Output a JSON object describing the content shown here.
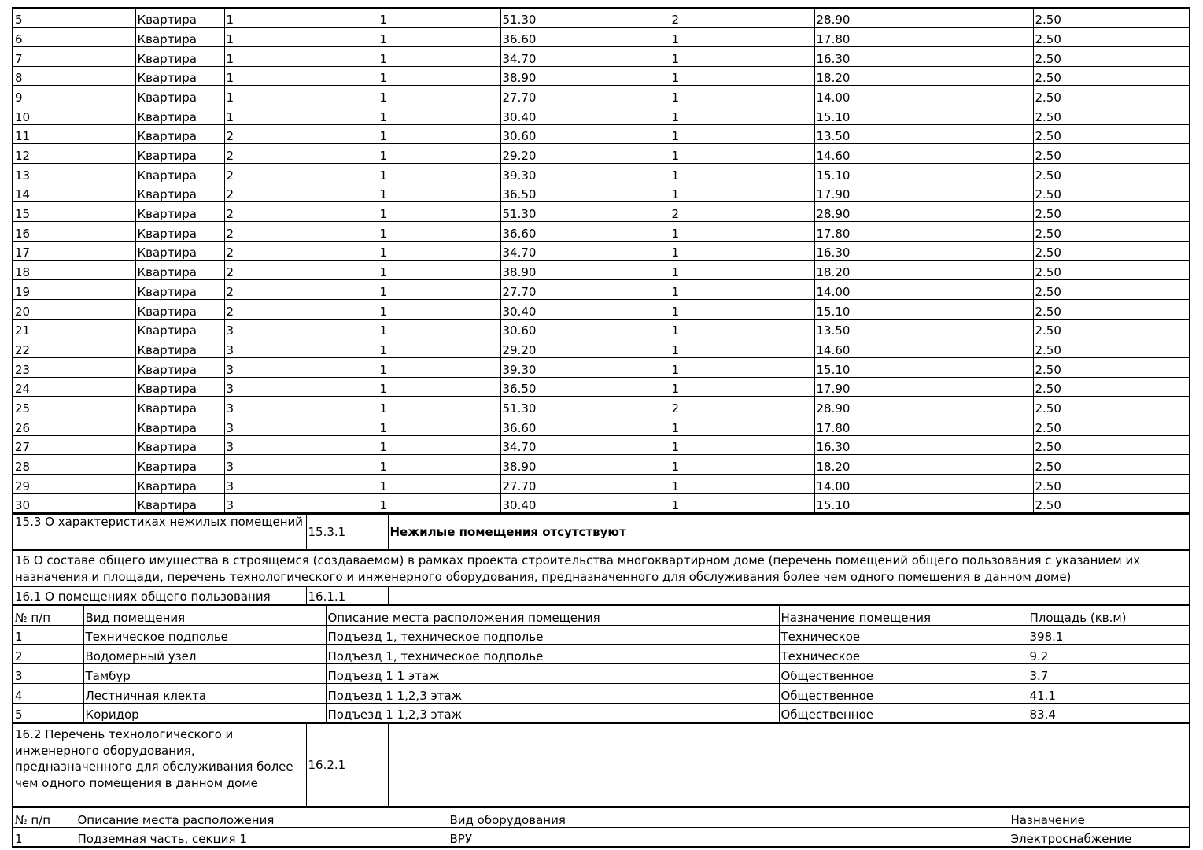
{
  "apartments": [
    [
      "5",
      "Квартира",
      "1",
      "1",
      "51.30",
      "2",
      "28.90",
      "2.50"
    ],
    [
      "6",
      "Квартира",
      "1",
      "1",
      "36.60",
      "1",
      "17.80",
      "2.50"
    ],
    [
      "7",
      "Квартира",
      "1",
      "1",
      "34.70",
      "1",
      "16.30",
      "2.50"
    ],
    [
      "8",
      "Квартира",
      "1",
      "1",
      "38.90",
      "1",
      "18.20",
      "2.50"
    ],
    [
      "9",
      "Квартира",
      "1",
      "1",
      "27.70",
      "1",
      "14.00",
      "2.50"
    ],
    [
      "10",
      "Квартира",
      "1",
      "1",
      "30.40",
      "1",
      "15.10",
      "2.50"
    ],
    [
      "11",
      "Квартира",
      "2",
      "1",
      "30.60",
      "1",
      "13.50",
      "2.50"
    ],
    [
      "12",
      "Квартира",
      "2",
      "1",
      "29.20",
      "1",
      "14.60",
      "2.50"
    ],
    [
      "13",
      "Квартира",
      "2",
      "1",
      "39.30",
      "1",
      "15.10",
      "2.50"
    ],
    [
      "14",
      "Квартира",
      "2",
      "1",
      "36.50",
      "1",
      "17.90",
      "2.50"
    ],
    [
      "15",
      "Квартира",
      "2",
      "1",
      "51.30",
      "2",
      "28.90",
      "2.50"
    ],
    [
      "16",
      "Квартира",
      "2",
      "1",
      "36.60",
      "1",
      "17.80",
      "2.50"
    ],
    [
      "17",
      "Квартира",
      "2",
      "1",
      "34.70",
      "1",
      "16.30",
      "2.50"
    ],
    [
      "18",
      "Квартира",
      "2",
      "1",
      "38.90",
      "1",
      "18.20",
      "2.50"
    ],
    [
      "19",
      "Квартира",
      "2",
      "1",
      "27.70",
      "1",
      "14.00",
      "2.50"
    ],
    [
      "20",
      "Квартира",
      "2",
      "1",
      "30.40",
      "1",
      "15.10",
      "2.50"
    ],
    [
      "21",
      "Квартира",
      "3",
      "1",
      "30.60",
      "1",
      "13.50",
      "2.50"
    ],
    [
      "22",
      "Квартира",
      "3",
      "1",
      "29.20",
      "1",
      "14.60",
      "2.50"
    ],
    [
      "23",
      "Квартира",
      "3",
      "1",
      "39.30",
      "1",
      "15.10",
      "2.50"
    ],
    [
      "24",
      "Квартира",
      "3",
      "1",
      "36.50",
      "1",
      "17.90",
      "2.50"
    ],
    [
      "25",
      "Квартира",
      "3",
      "1",
      "51.30",
      "2",
      "28.90",
      "2.50"
    ],
    [
      "26",
      "Квартира",
      "3",
      "1",
      "36.60",
      "1",
      "17.80",
      "2.50"
    ],
    [
      "27",
      "Квартира",
      "3",
      "1",
      "34.70",
      "1",
      "16.30",
      "2.50"
    ],
    [
      "28",
      "Квартира",
      "3",
      "1",
      "38.90",
      "1",
      "18.20",
      "2.50"
    ],
    [
      "29",
      "Квартира",
      "3",
      "1",
      "27.70",
      "1",
      "14.00",
      "2.50"
    ],
    [
      "30",
      "Квартира",
      "3",
      "1",
      "30.40",
      "1",
      "15.10",
      "2.50"
    ]
  ],
  "s15_3": {
    "label": "15.3 О характеристиках нежилых помещений",
    "code": "15.3.1",
    "value": "Нежилые помещения отсутствуют"
  },
  "s16": {
    "text": "16 О составе общего имущества в строящемся (создаваемом) в рамках проекта строительства многоквартирном доме (перечень помещений общего пользования с указанием их назначения и площади, перечень технологического и инженерного оборудования, предназначенного для обслуживания более чем одного помещения в данном доме)"
  },
  "s16_1": {
    "label": "16.1 О помещениях общего пользования",
    "code": "16.1.1"
  },
  "rooms": {
    "headers": [
      "№ п/п",
      "Вид помещения",
      "Описание места расположения помещения",
      "Назначение помещения",
      "Площадь (кв.м)"
    ],
    "rows": [
      [
        "1",
        "Техническое подполье",
        "Подъезд 1, техническое подполье",
        "Техническое",
        "398.1"
      ],
      [
        "2",
        "Водомерный узел",
        "Подъезд 1, техническое подполье",
        "Техническое",
        "9.2"
      ],
      [
        "3",
        "Тамбур",
        "Подъезд 1 1 этаж",
        "Общественное",
        "3.7"
      ],
      [
        "4",
        "Лестничная клекта",
        "Подъезд 1 1,2,3 этаж",
        "Общественное",
        "41.1"
      ],
      [
        "5",
        "Коридор",
        "Подъезд 1 1,2,3 этаж",
        "Общественное",
        "83.4"
      ]
    ]
  },
  "s16_2": {
    "label": "16.2 Перечень технологического и инженерного оборудования, предназначенного для обслуживания более чем одного помещения в данном доме",
    "code": "16.2.1"
  },
  "equipment": {
    "headers": [
      "№ п/п",
      "Описание места расположения",
      "Вид оборудования",
      "Назначение"
    ],
    "rows": [
      [
        "1",
        "Подземная часть, секция 1",
        "ВРУ",
        "Электроснабжение"
      ]
    ]
  }
}
